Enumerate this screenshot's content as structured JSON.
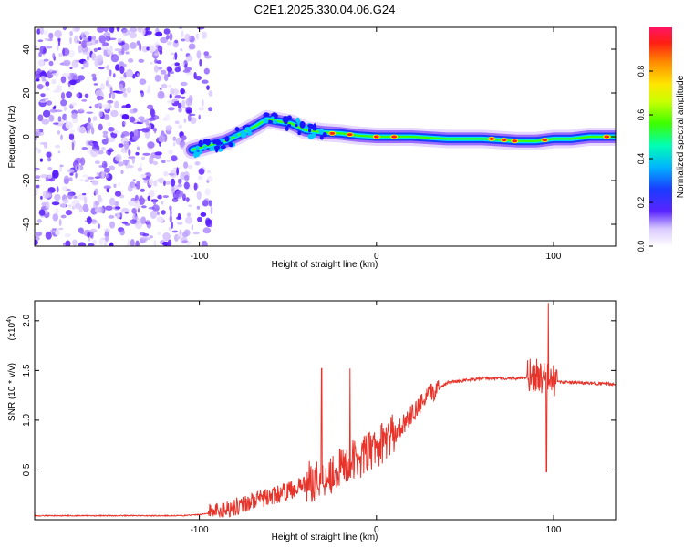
{
  "figure_title": "C2E1.2025.330.04.06.G24",
  "chart_data": [
    {
      "type": "heatmap",
      "title": "C2E1.2025.330.04.06.G24",
      "xlabel": "Height of straight line (km)",
      "ylabel": "Frequency (Hz)",
      "xlim": [
        -193,
        135
      ],
      "ylim": [
        -50,
        50
      ],
      "xticks": [
        -100,
        0,
        100
      ],
      "xtick_labels": [
        "-100",
        "0",
        "100"
      ],
      "yticks": [
        -40,
        -20,
        0,
        20,
        40
      ],
      "ytick_labels": [
        "-40",
        "-20",
        "0",
        "20",
        "40"
      ],
      "noise_region_x": [
        -193,
        -93
      ],
      "ridge": {
        "x": [
          -104,
          -95,
          -85,
          -75,
          -68,
          -62,
          -55,
          -48,
          -40,
          -30,
          -20,
          -10,
          0,
          10,
          20,
          40,
          60,
          80,
          90,
          100,
          110,
          120,
          135
        ],
        "y": [
          -6,
          -4,
          -2,
          2,
          5,
          8,
          7,
          6,
          3,
          2,
          1.5,
          0.5,
          0,
          0,
          0,
          -1,
          -1,
          -2,
          -2,
          -1,
          -1,
          0,
          0
        ]
      },
      "colorbar": {
        "label": "Normalized spectral amplitude",
        "range": [
          0,
          1
        ],
        "ticks": [
          0.0,
          0.2,
          0.4,
          0.6,
          0.8
        ],
        "tick_labels": [
          "0.0",
          "0.2",
          "0.4",
          "0.6",
          "0.8"
        ],
        "colors": [
          "#ffffff",
          "#9a6cff",
          "#3a12ff",
          "#0a8cff",
          "#00ffe0",
          "#22ff00",
          "#c8ff00",
          "#ffff00",
          "#ff8c00",
          "#ff1e14",
          "#ff1464"
        ]
      }
    },
    {
      "type": "line",
      "xlabel": "Height of straight line (km)",
      "ylabel": "SNR (10 * v/v)",
      "scale_note": "(x10",
      "scale_exp": "4",
      "xlim": [
        -193,
        135
      ],
      "ylim": [
        0,
        2.2
      ],
      "xticks": [
        -100,
        0,
        100
      ],
      "xtick_labels": [
        "-100",
        "0",
        "100"
      ],
      "yticks": [
        0.5,
        1.0,
        1.5,
        2.0
      ],
      "ytick_labels": [
        "0.5",
        "1.0",
        "1.5",
        "2.0"
      ],
      "line_color": "#e8332a",
      "series": [
        {
          "name": "SNR",
          "x": [
            -193,
            -150,
            -110,
            -100,
            -90,
            -80,
            -70,
            -60,
            -50,
            -40,
            -30,
            -20,
            -10,
            0,
            10,
            20,
            30,
            40,
            60,
            80,
            90,
            95,
            97,
            100,
            110,
            120,
            135
          ],
          "y": [
            0.04,
            0.04,
            0.04,
            0.05,
            0.08,
            0.12,
            0.18,
            0.22,
            0.28,
            0.35,
            0.4,
            0.5,
            0.6,
            0.7,
            0.85,
            1.05,
            1.25,
            1.38,
            1.42,
            1.42,
            1.43,
            1.4,
            1.38,
            1.38,
            1.38,
            1.37,
            1.36
          ]
        }
      ],
      "spikes": [
        {
          "x": -31,
          "y": 1.52
        },
        {
          "x": -15,
          "y": 1.52
        },
        {
          "x": 97,
          "y": 2.18
        },
        {
          "x": 96,
          "y": 0.48
        }
      ]
    }
  ]
}
